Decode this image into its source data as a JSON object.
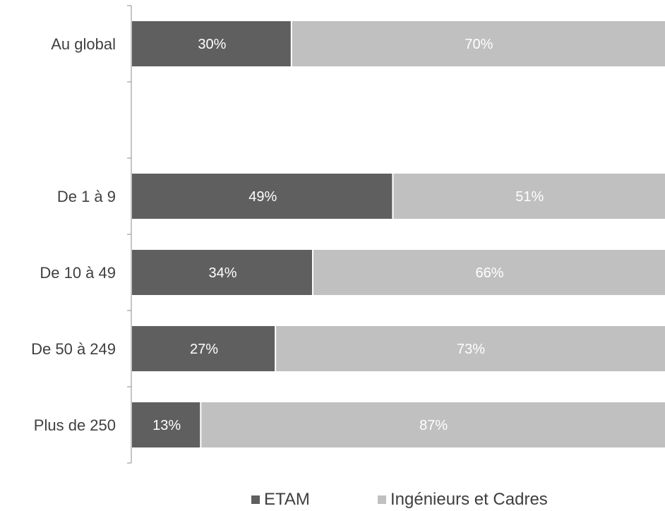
{
  "chart_data": {
    "type": "bar",
    "orientation": "horizontal",
    "stacked": true,
    "percent": true,
    "categories": [
      "Au global",
      "",
      "De 1 à 9",
      "De 10 à 49",
      "De 50 à 249",
      "Plus de 250"
    ],
    "series": [
      {
        "name": "ETAM",
        "color": "#5f5f5f",
        "values": [
          30,
          null,
          49,
          34,
          27,
          13
        ]
      },
      {
        "name": "Ingénieurs et Cadres",
        "color": "#c0c0c0",
        "values": [
          70,
          null,
          51,
          66,
          73,
          87
        ]
      }
    ],
    "data_labels": {
      "ETAM": [
        "30%",
        "",
        "49%",
        "34%",
        "27%",
        "13%"
      ],
      "Ingénieurs et Cadres": [
        "70%",
        "",
        "51%",
        "66%",
        "73%",
        "87%"
      ]
    },
    "xlim": [
      0,
      100
    ],
    "grid": false,
    "legend_position": "bottom"
  },
  "legend": {
    "items": [
      {
        "label": "ETAM",
        "color": "#5f5f5f"
      },
      {
        "label": "Ingénieurs et Cadres",
        "color": "#c0c0c0"
      }
    ]
  }
}
